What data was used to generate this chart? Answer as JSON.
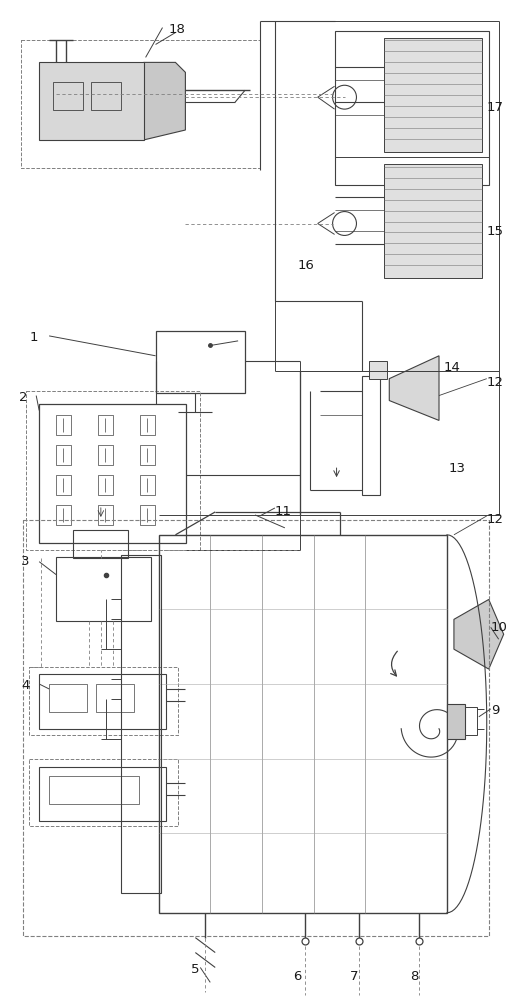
{
  "bg": "#ffffff",
  "lc": "#404040",
  "dc": "#808080",
  "gc": "#909090",
  "fig_w": 5.14,
  "fig_h": 10.0,
  "dpi": 100
}
